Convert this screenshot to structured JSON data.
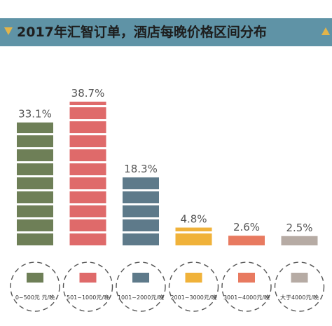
{
  "banner": {
    "title": "2017年汇智订单，酒店每晚价格区间分布",
    "left_icon": "triangle-down-icon",
    "right_icon": "triangle-up-icon",
    "colors": {
      "background": "#5f93a6",
      "icon": "#e3b44a"
    }
  },
  "chart_data": {
    "type": "bar",
    "categories": [
      "0~500元 元/晚",
      "501~1000元/晚",
      "1001~2000元/晚",
      "2001~3000元/晚",
      "3001~4000元/晚",
      "大于4000元/晚"
    ],
    "values": [
      33.1,
      38.7,
      18.3,
      4.8,
      2.6,
      2.5
    ],
    "value_labels": [
      "33.1%",
      "38.7%",
      "18.3%",
      "4.8%",
      "2.6%",
      "2.5%"
    ],
    "unit": "%",
    "colors": [
      "#6e7f57",
      "#df6a6a",
      "#5e7a8a",
      "#f0b23a",
      "#e87a60",
      "#b6aba4"
    ],
    "ylim": [
      0,
      38.7
    ],
    "legend": "bottom",
    "grid": false
  }
}
